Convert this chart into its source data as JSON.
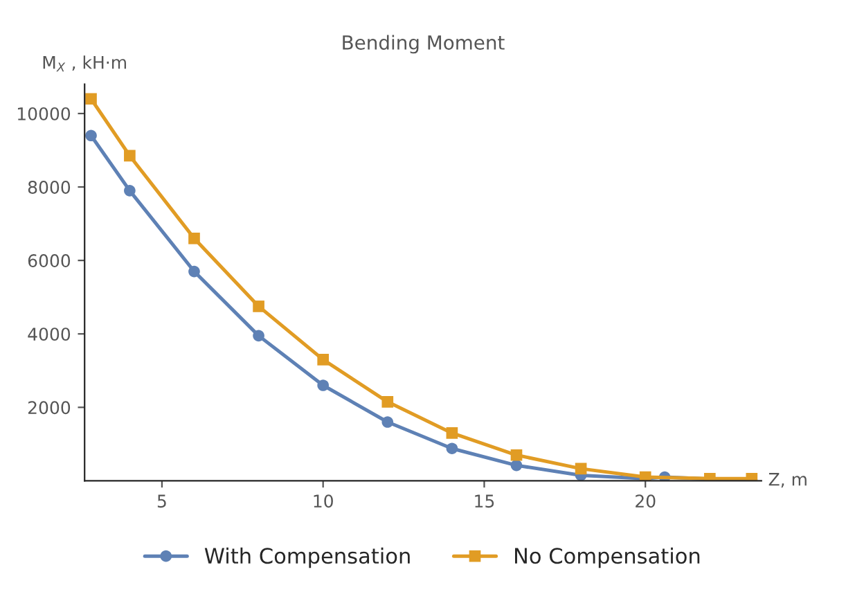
{
  "chart_data": {
    "type": "line",
    "title": "Bending Moment",
    "xlabel": "Z, m",
    "ylabel": "M$_{X}$ , kH·m",
    "xlim": [
      2.6,
      23.6
    ],
    "xticks": [
      5,
      10,
      15,
      20
    ],
    "ylim": [
      0,
      10800
    ],
    "yticks": [
      2000,
      4000,
      6000,
      8000,
      10000
    ],
    "grid": false,
    "legend": "bottom",
    "series": [
      {
        "name": "With Compensation",
        "color": "#5e81b5",
        "marker": "circle",
        "x": [
          2.8,
          4,
          6,
          8,
          10,
          12,
          14,
          16,
          18,
          20,
          20.6,
          22,
          23.3
        ],
        "values": [
          9400,
          7900,
          5700,
          3950,
          2600,
          1600,
          880,
          420,
          150,
          60,
          100,
          50,
          40
        ]
      },
      {
        "name": "No Compensation",
        "color": "#e19c24",
        "marker": "square",
        "x": [
          2.8,
          4,
          6,
          8,
          10,
          12,
          14,
          16,
          18,
          20,
          22,
          23.3
        ],
        "values": [
          10400,
          8850,
          6600,
          4750,
          3300,
          2150,
          1300,
          700,
          330,
          100,
          60,
          60
        ]
      }
    ]
  }
}
